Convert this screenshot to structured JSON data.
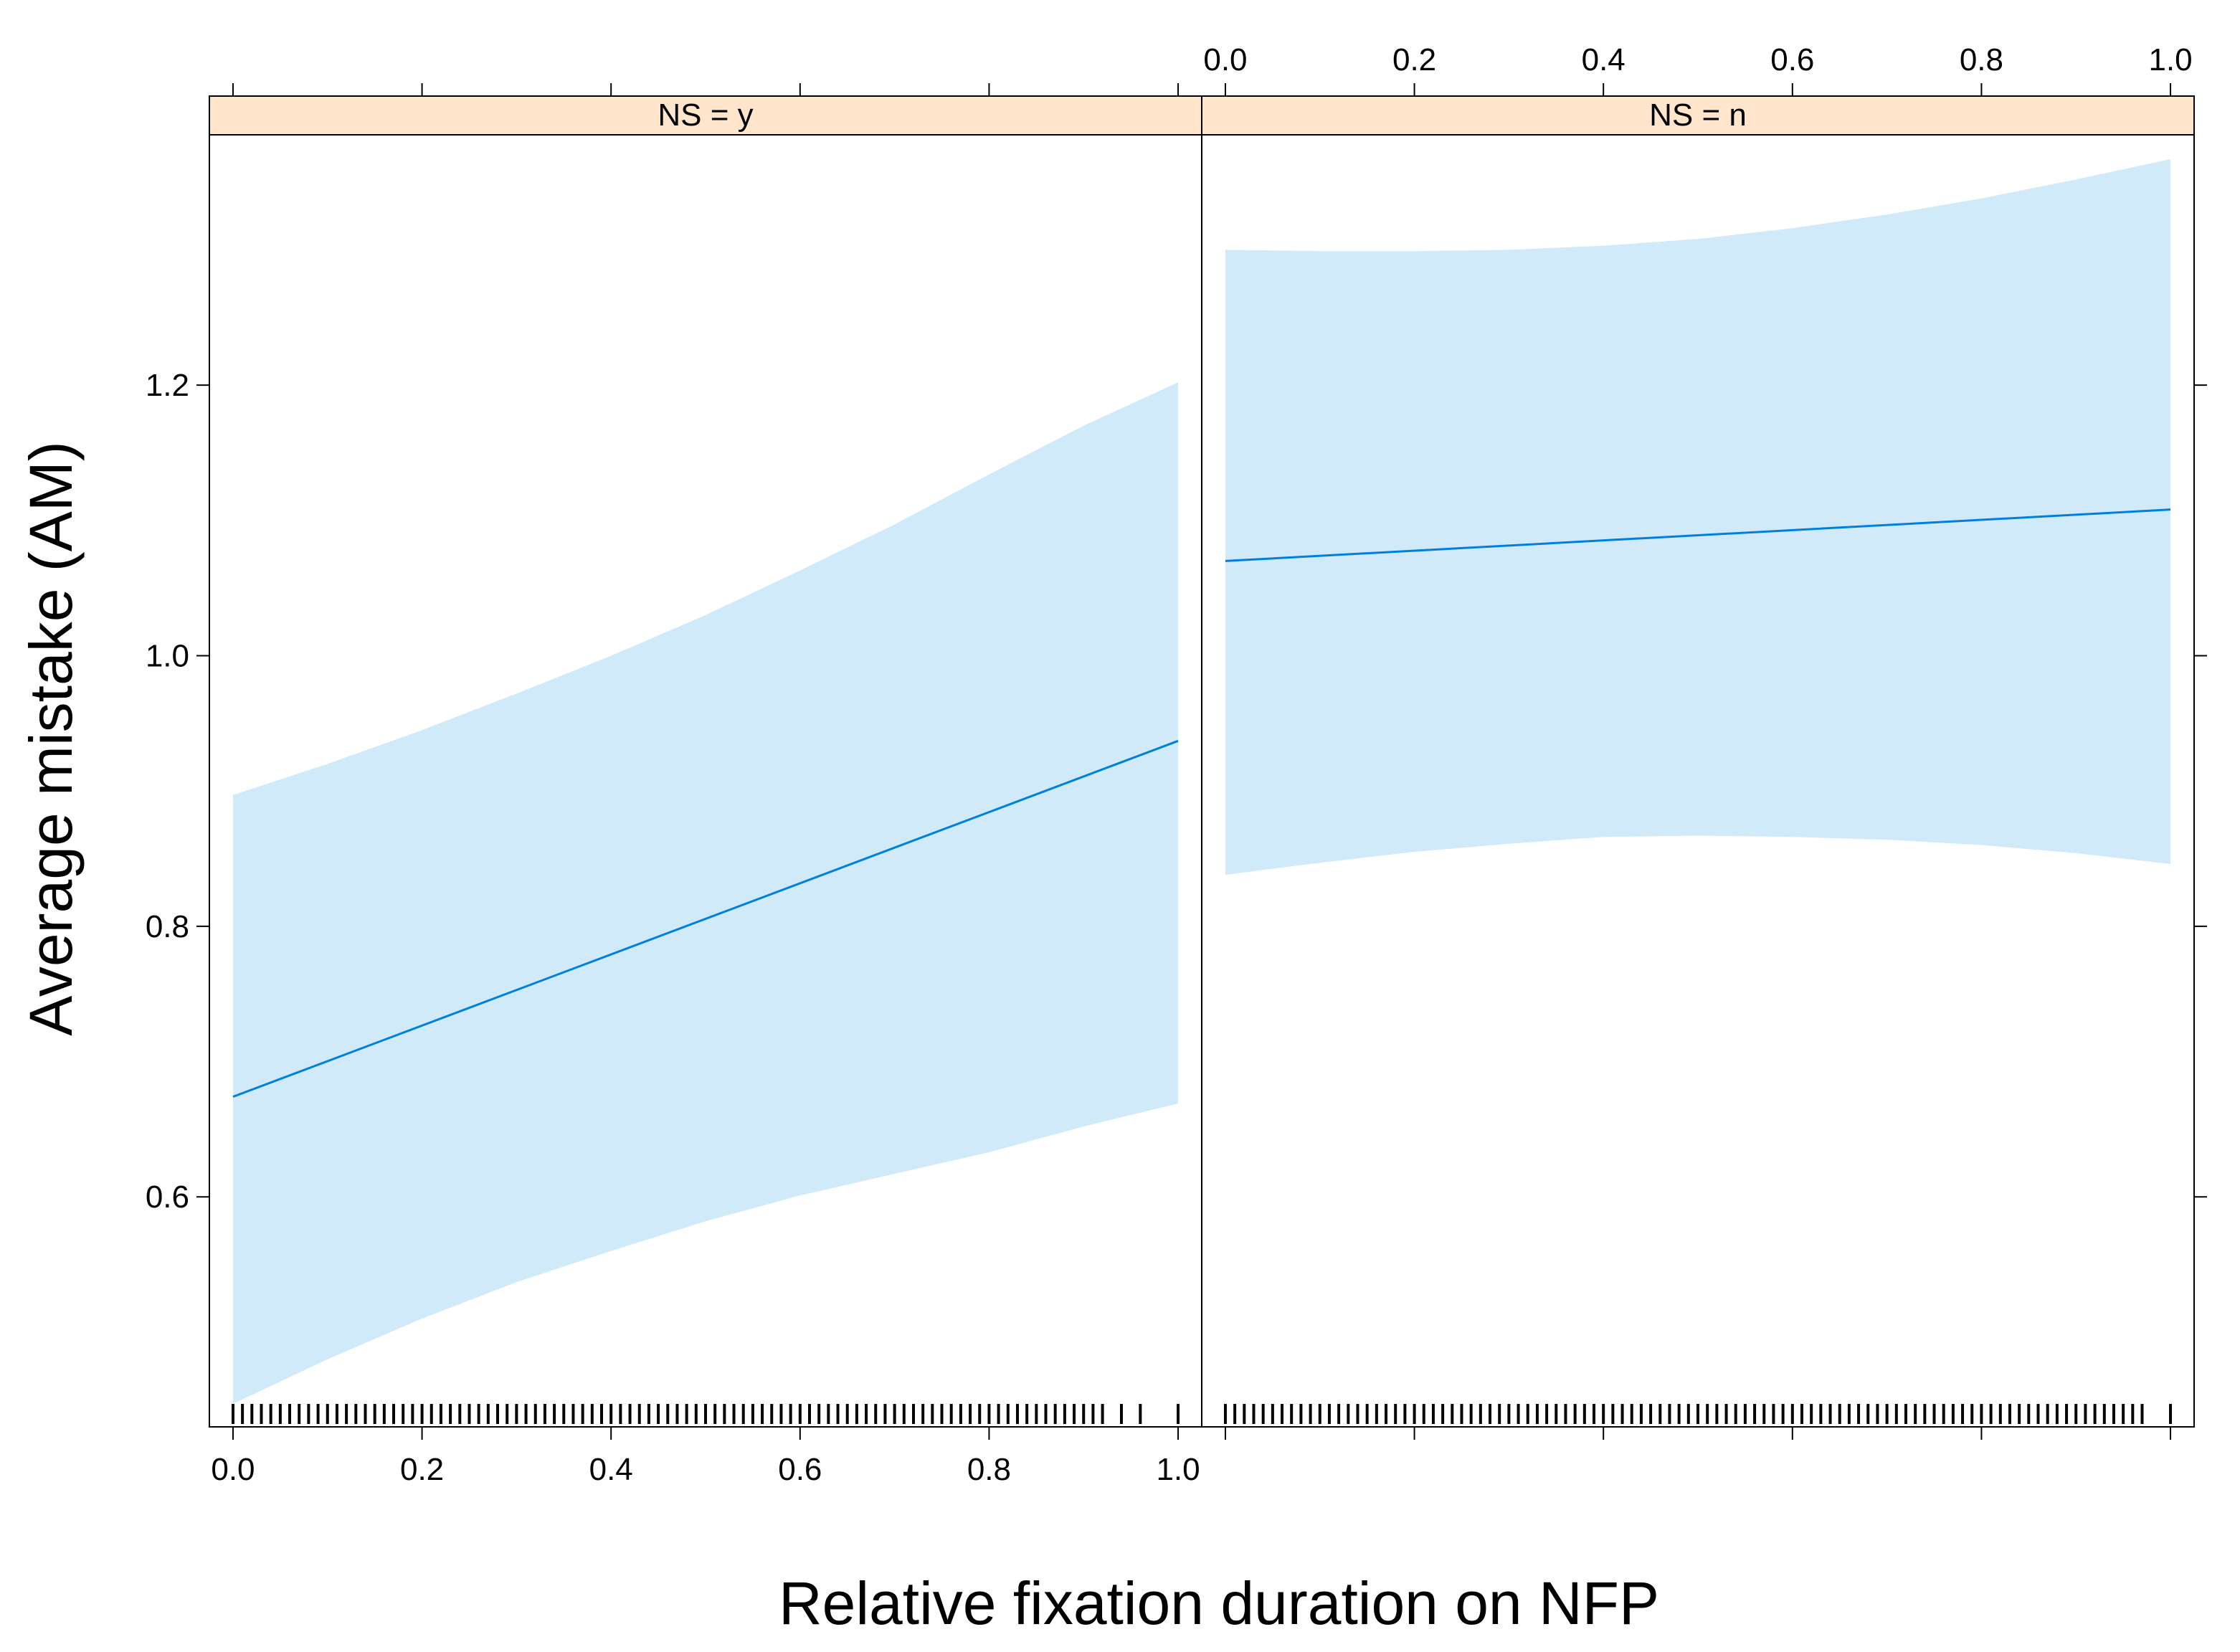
{
  "chart_data": {
    "type": "line",
    "xlabel": "Relative fixation duration on NFP",
    "ylabel": "Average mistake (AM)",
    "xlim": [
      -0.025,
      1.025
    ],
    "ylim": [
      0.43,
      1.385
    ],
    "x_ticks": [
      "0.0",
      "0.2",
      "0.4",
      "0.6",
      "0.8",
      "1.0"
    ],
    "y_ticks": [
      "0.6",
      "0.8",
      "1.0",
      "1.2"
    ],
    "colors": {
      "line": "#0080dd",
      "band": "#d1eaf9",
      "strip": "#ffe5cc",
      "axis": "#000000"
    },
    "panels": [
      {
        "label": "NS = y",
        "fit": {
          "x": [
            0.0,
            1.0
          ],
          "y": [
            0.674,
            0.937
          ]
        },
        "band_x": [
          0.0,
          0.1,
          0.2,
          0.3,
          0.4,
          0.5,
          0.6,
          0.7,
          0.8,
          0.9,
          1.0
        ],
        "band_upper": [
          0.897,
          0.92,
          0.945,
          0.972,
          1.0,
          1.03,
          1.063,
          1.097,
          1.134,
          1.17,
          1.202
        ],
        "band_lower": [
          0.447,
          0.48,
          0.51,
          0.537,
          0.56,
          0.582,
          0.601,
          0.617,
          0.633,
          0.652,
          0.669
        ],
        "rug": [
          0.0,
          0.01,
          0.02,
          0.03,
          0.04,
          0.05,
          0.06,
          0.07,
          0.08,
          0.09,
          0.1,
          0.11,
          0.12,
          0.13,
          0.14,
          0.15,
          0.16,
          0.17,
          0.18,
          0.19,
          0.2,
          0.21,
          0.22,
          0.23,
          0.24,
          0.25,
          0.26,
          0.27,
          0.28,
          0.29,
          0.3,
          0.31,
          0.32,
          0.33,
          0.34,
          0.35,
          0.36,
          0.37,
          0.38,
          0.39,
          0.4,
          0.41,
          0.42,
          0.43,
          0.44,
          0.45,
          0.46,
          0.47,
          0.48,
          0.49,
          0.5,
          0.51,
          0.52,
          0.53,
          0.54,
          0.55,
          0.56,
          0.57,
          0.58,
          0.59,
          0.6,
          0.61,
          0.62,
          0.63,
          0.64,
          0.65,
          0.66,
          0.67,
          0.68,
          0.69,
          0.7,
          0.71,
          0.72,
          0.73,
          0.74,
          0.75,
          0.76,
          0.77,
          0.78,
          0.79,
          0.8,
          0.81,
          0.82,
          0.83,
          0.84,
          0.85,
          0.86,
          0.87,
          0.88,
          0.89,
          0.9,
          0.91,
          0.92,
          0.94,
          0.96,
          1.0
        ]
      },
      {
        "label": "NS = n",
        "fit": {
          "x": [
            0.0,
            1.0
          ],
          "y": [
            1.07,
            1.108
          ]
        },
        "band_x": [
          0.0,
          0.1,
          0.2,
          0.3,
          0.4,
          0.5,
          0.6,
          0.7,
          0.8,
          0.9,
          1.0
        ],
        "band_upper": [
          1.3,
          1.299,
          1.299,
          1.3,
          1.303,
          1.308,
          1.316,
          1.326,
          1.338,
          1.352,
          1.367
        ],
        "band_lower": [
          0.838,
          0.847,
          0.855,
          0.861,
          0.866,
          0.867,
          0.866,
          0.864,
          0.86,
          0.854,
          0.846
        ],
        "rug": [
          0.0,
          0.01,
          0.02,
          0.03,
          0.04,
          0.05,
          0.06,
          0.07,
          0.08,
          0.09,
          0.1,
          0.11,
          0.12,
          0.13,
          0.14,
          0.15,
          0.16,
          0.17,
          0.18,
          0.19,
          0.2,
          0.21,
          0.22,
          0.23,
          0.24,
          0.25,
          0.26,
          0.27,
          0.28,
          0.29,
          0.3,
          0.31,
          0.32,
          0.33,
          0.34,
          0.35,
          0.36,
          0.37,
          0.38,
          0.39,
          0.4,
          0.41,
          0.42,
          0.43,
          0.44,
          0.45,
          0.46,
          0.47,
          0.48,
          0.49,
          0.5,
          0.51,
          0.52,
          0.53,
          0.54,
          0.55,
          0.56,
          0.57,
          0.58,
          0.59,
          0.6,
          0.61,
          0.62,
          0.63,
          0.64,
          0.65,
          0.66,
          0.67,
          0.68,
          0.69,
          0.7,
          0.71,
          0.72,
          0.73,
          0.74,
          0.75,
          0.76,
          0.77,
          0.78,
          0.79,
          0.8,
          0.81,
          0.82,
          0.83,
          0.84,
          0.85,
          0.86,
          0.87,
          0.88,
          0.89,
          0.9,
          0.91,
          0.92,
          0.93,
          0.94,
          0.95,
          0.96,
          0.97,
          1.0
        ]
      }
    ]
  }
}
